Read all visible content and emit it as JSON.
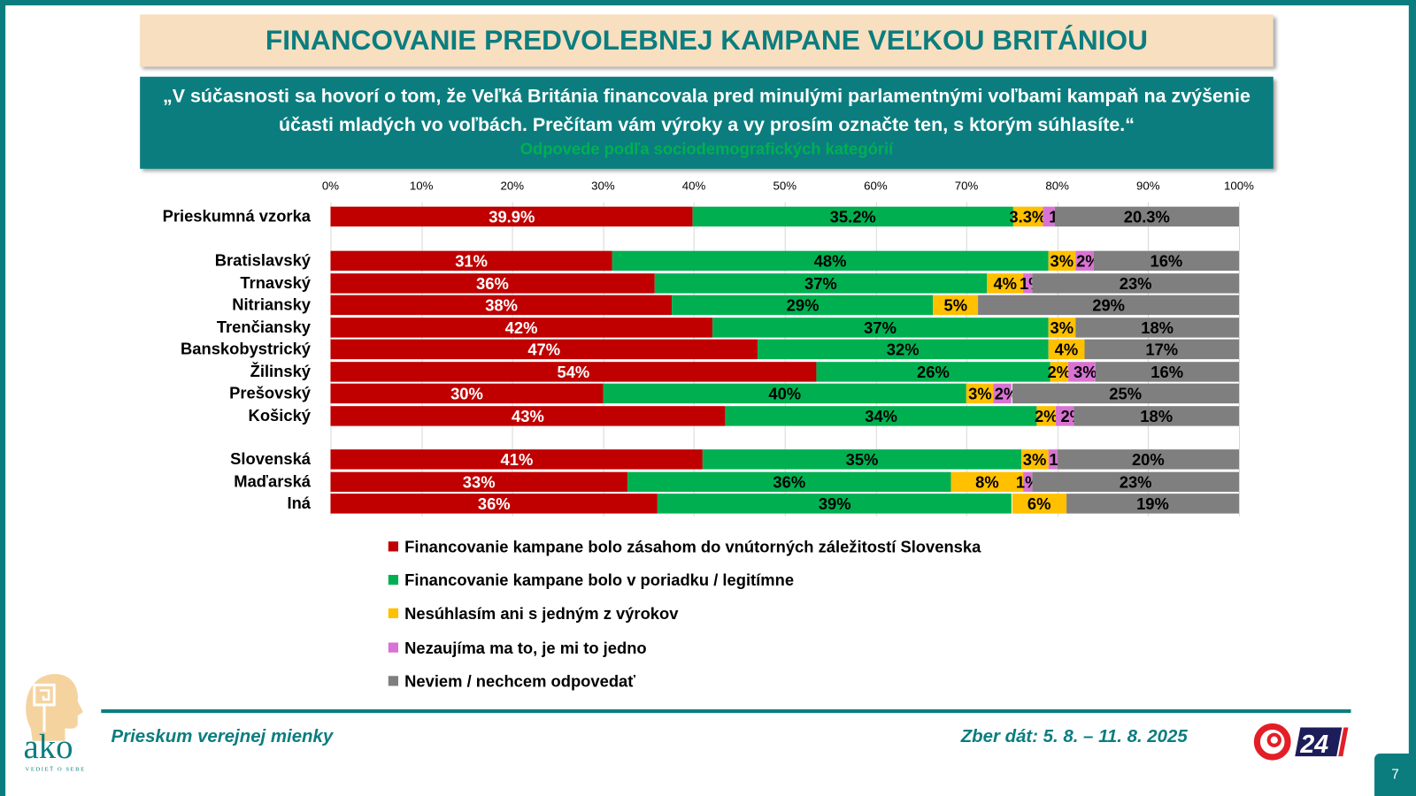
{
  "header": {
    "title": "FINANCOVANIE PREDVOLEBNEJ KAMPANE VEĽKOU BRITÁNIOU",
    "question": "„V súčasnosti sa hovorí o tom, že Veľká Británia financovala pred minulými parlamentnými voľbami kampaň na zvýšenie účasti mladých vo voľbách. Prečítam vám výroky a vy prosím označte ten, s ktorým súhlasíte.“",
    "subtitle": "Odpovede podľa sociodemografických kategórií"
  },
  "chart_data": {
    "type": "bar",
    "orientation": "horizontal",
    "stacked": "100%",
    "xlim": [
      0,
      100
    ],
    "ticks": [
      "0%",
      "10%",
      "20%",
      "30%",
      "40%",
      "50%",
      "60%",
      "70%",
      "80%",
      "90%",
      "100%"
    ],
    "grid": true,
    "legend_position": "bottom",
    "categories": [
      "Prieskumná vzorka",
      "Bratislavský",
      "Trnavský",
      "Nitriansky",
      "Trenčiansky",
      "Banskobystrický",
      "Žilinský",
      "Prešovský",
      "Košický",
      "Slovenská",
      "Maďarská",
      "Iná"
    ],
    "series": [
      {
        "name": "Financovanie kampane bolo zásahom do vnútorných záležitostí Slovenska",
        "color": "#c00000",
        "values": [
          39.9,
          31,
          36,
          38,
          42,
          47,
          54,
          30,
          43,
          41,
          33,
          36
        ]
      },
      {
        "name": "Financovanie kampane bolo v poriadku / legitímne",
        "color": "#00b050",
        "values": [
          35.2,
          48,
          37,
          29,
          37,
          32,
          26,
          40,
          34,
          35,
          36,
          39
        ]
      },
      {
        "name": "Nesúhlasím ani s jedným z výrokov",
        "color": "#ffc000",
        "values": [
          3.3,
          3,
          4,
          5,
          3,
          4,
          2,
          3,
          2,
          3,
          8,
          6
        ]
      },
      {
        "name": "Nezaujíma ma to, je mi to jedno",
        "color": "#d873d3",
        "values": [
          1.3,
          2,
          1,
          null,
          null,
          null,
          3,
          2,
          2,
          1,
          1,
          null
        ]
      },
      {
        "name": "Neviem / nechcem odpovedať",
        "color": "#7f7f7f",
        "values": [
          20.3,
          16,
          23,
          29,
          18,
          17,
          16,
          25,
          18,
          20,
          23,
          19
        ]
      }
    ]
  },
  "footer": {
    "left": "Prieskum verejnej mienky",
    "right": "Zber dát: 5. 8. – 11. 8. 2025",
    "page": "7",
    "logo_ako": "ako",
    "logo_ako_tagline": "VEDIEŤ O SEBE",
    "logo_tv": "24"
  }
}
